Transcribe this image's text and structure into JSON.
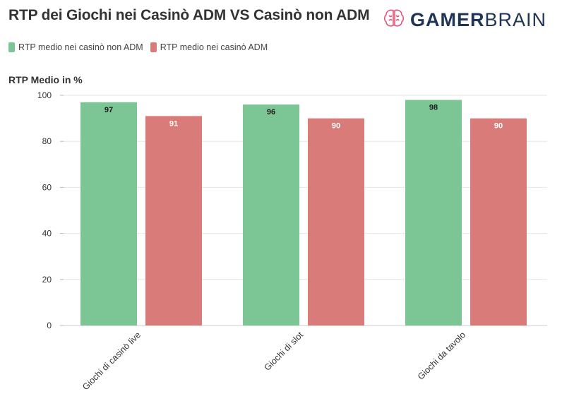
{
  "header": {
    "title": "RTP dei Giochi nei Casinò ADM VS Casinò non ADM",
    "brand_bold": "GAMER",
    "brand_light": "BRAIN"
  },
  "colors": {
    "series_non_adm": "#7cc594",
    "series_adm": "#d97c79",
    "brand_text": "#1f3556",
    "brand_icon": "#e0557a"
  },
  "chart_data": {
    "type": "bar",
    "title": "RTP dei Giochi nei Casinò ADM VS Casinò non ADM",
    "ylabel": "RTP Medio in %",
    "xlabel": "",
    "ylim": [
      0,
      100
    ],
    "yticks": [
      0,
      20,
      40,
      60,
      80,
      100
    ],
    "categories": [
      "Giochi di casinò live",
      "Giochi di slot",
      "Giochi da tavolo"
    ],
    "series": [
      {
        "name": "RTP medio nei casinò non ADM",
        "values": [
          97,
          96,
          98
        ],
        "color": "#7cc594"
      },
      {
        "name": "RTP medio nei casinò ADM",
        "values": [
          91,
          90,
          90
        ],
        "color": "#d97c79"
      }
    ],
    "grid": true,
    "legend_position": "top-left"
  }
}
